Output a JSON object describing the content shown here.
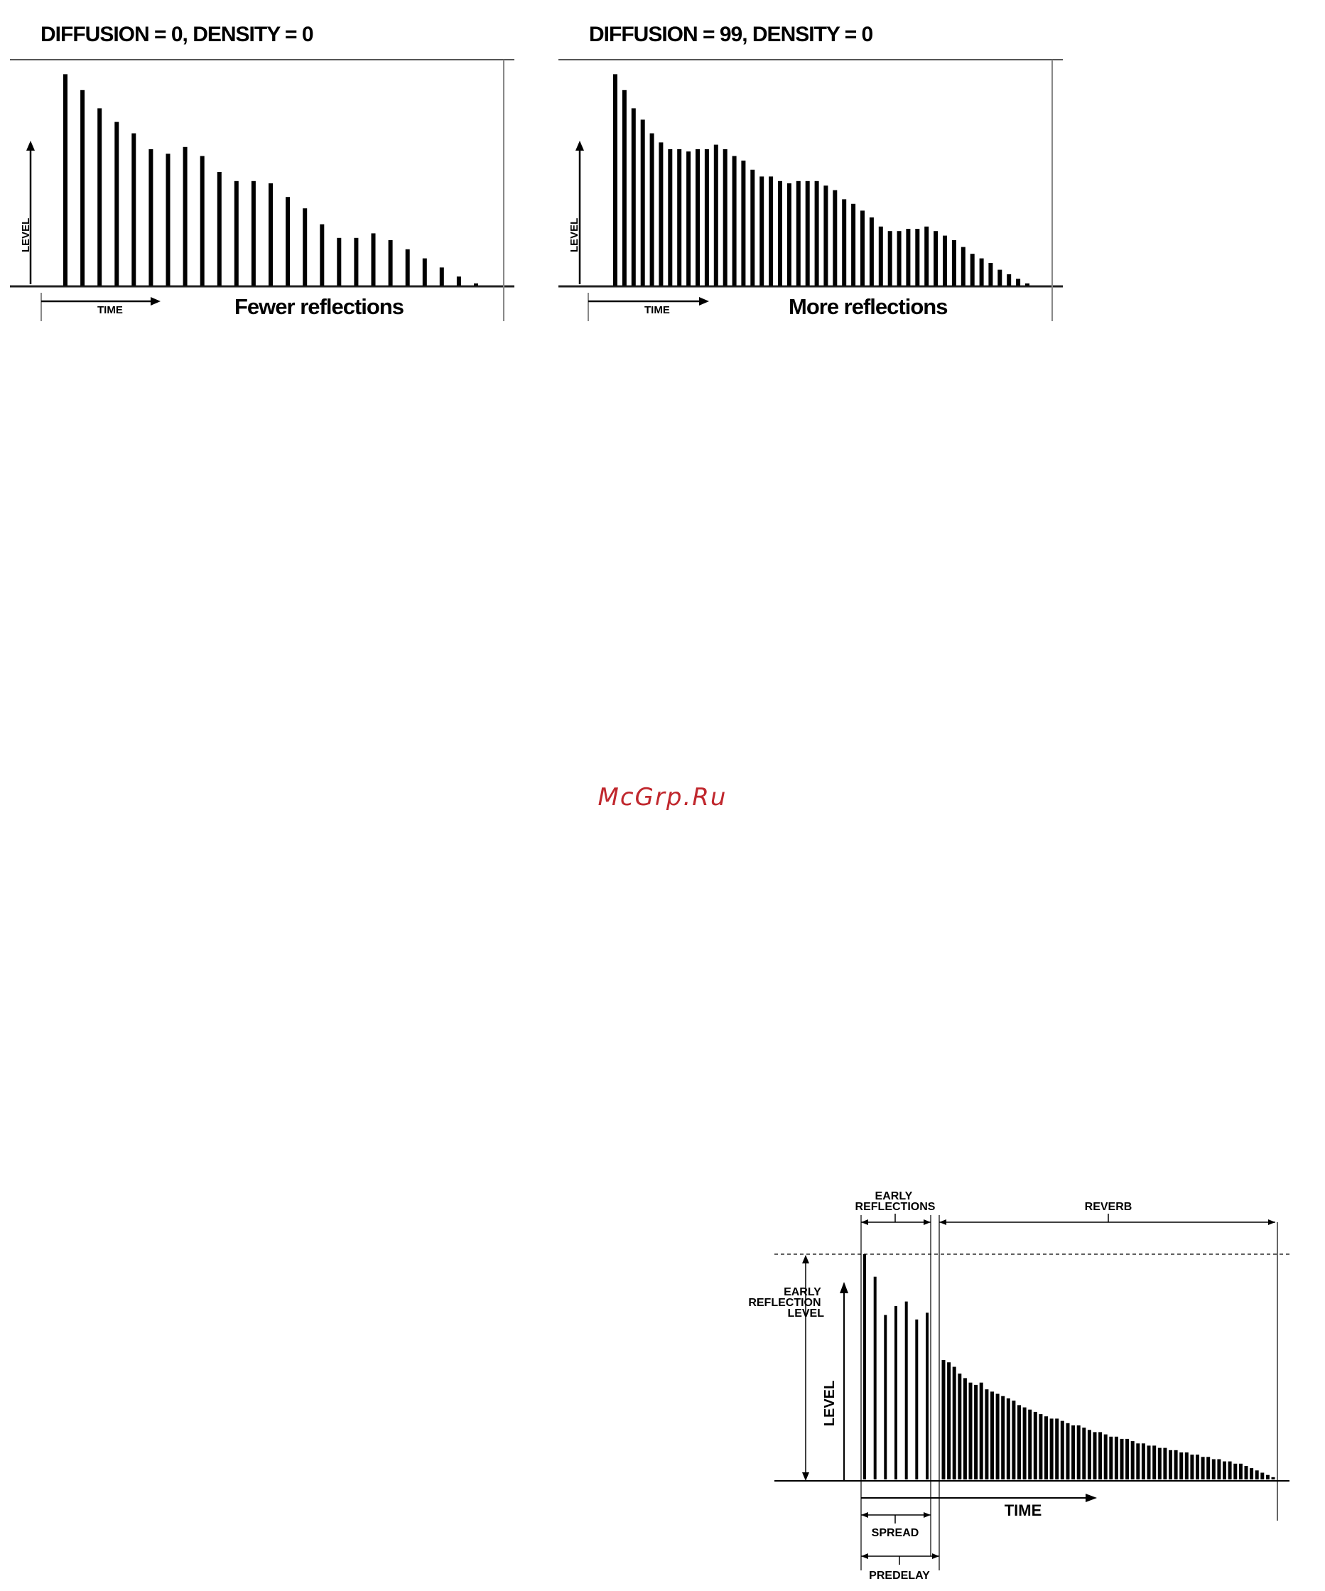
{
  "panel_left": {
    "title": "DIFFUSION = 0, DENSITY = 0",
    "caption": "Fewer reflections",
    "y_label": "LEVEL",
    "x_label": "TIME",
    "bars": [
      0.93,
      0.86,
      0.78,
      0.72,
      0.67,
      0.6,
      0.58,
      0.61,
      0.57,
      0.5,
      0.46,
      0.46,
      0.45,
      0.39,
      0.34,
      0.27,
      0.21,
      0.21,
      0.23,
      0.2,
      0.16,
      0.12,
      0.08,
      0.04,
      0.01
    ]
  },
  "panel_right": {
    "title": "DIFFUSION = 99, DENSITY = 0",
    "caption": "More reflections",
    "y_label": "LEVEL",
    "x_label": "TIME",
    "bars": [
      0.93,
      0.86,
      0.78,
      0.73,
      0.67,
      0.63,
      0.6,
      0.6,
      0.59,
      0.6,
      0.6,
      0.62,
      0.6,
      0.57,
      0.55,
      0.51,
      0.48,
      0.48,
      0.46,
      0.45,
      0.46,
      0.46,
      0.46,
      0.44,
      0.42,
      0.38,
      0.36,
      0.33,
      0.3,
      0.26,
      0.24,
      0.24,
      0.25,
      0.25,
      0.26,
      0.24,
      0.22,
      0.2,
      0.17,
      0.14,
      0.12,
      0.1,
      0.07,
      0.05,
      0.03,
      0.01
    ]
  },
  "watermark": "McGrp.Ru",
  "reverb_diagram": {
    "label_early_reflections": "EARLY REFLECTIONS",
    "label_reverb": "REVERB",
    "label_early_reflection_level": "EARLY REFLECTION LEVEL",
    "label_level": "LEVEL",
    "label_time": "TIME",
    "label_spread": "SPREAD",
    "label_predelay": "PREDELAY",
    "early_bars": [
      1.0,
      0.9,
      0.73,
      0.77,
      0.79,
      0.71,
      0.74
    ],
    "reverb_bars": [
      0.53,
      0.52,
      0.5,
      0.47,
      0.45,
      0.43,
      0.42,
      0.43,
      0.4,
      0.39,
      0.38,
      0.37,
      0.36,
      0.35,
      0.33,
      0.32,
      0.31,
      0.3,
      0.29,
      0.28,
      0.27,
      0.27,
      0.26,
      0.25,
      0.24,
      0.24,
      0.23,
      0.22,
      0.21,
      0.21,
      0.2,
      0.19,
      0.19,
      0.18,
      0.18,
      0.17,
      0.16,
      0.16,
      0.15,
      0.15,
      0.14,
      0.14,
      0.13,
      0.13,
      0.12,
      0.12,
      0.11,
      0.11,
      0.1,
      0.1,
      0.09,
      0.09,
      0.08,
      0.08,
      0.07,
      0.07,
      0.06,
      0.05,
      0.04,
      0.03,
      0.02,
      0.01
    ]
  }
}
